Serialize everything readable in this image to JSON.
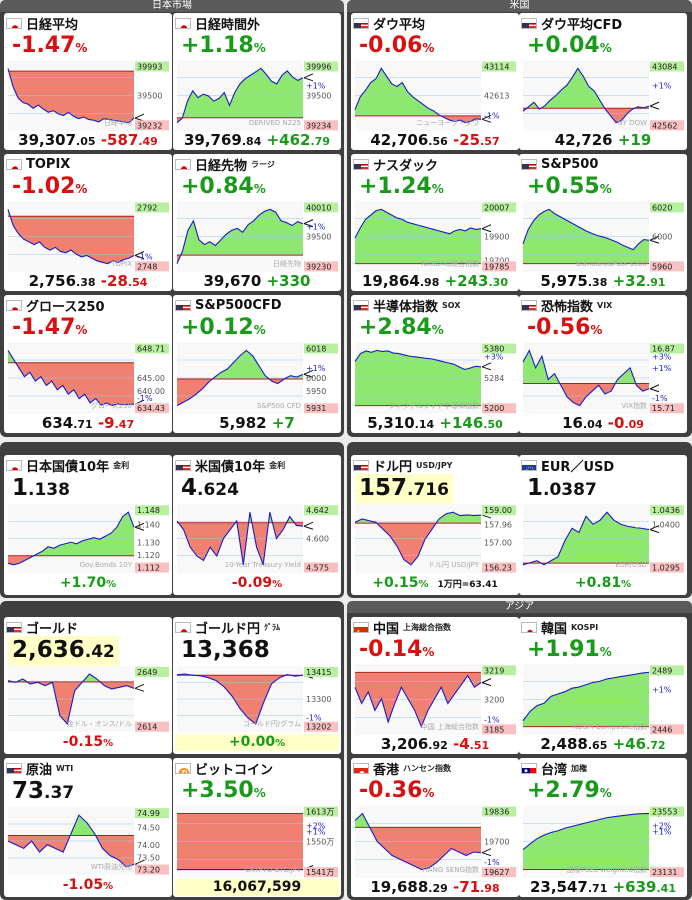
{
  "groups": {
    "japan": "日本市場",
    "us": "米国",
    "asia": "アジア"
  },
  "colors": {
    "up": "#1a9a1a",
    "down": "#d81010",
    "line": "#1a1acc",
    "green_fill": "#8ee870",
    "red_fill": "#f08070"
  },
  "cards": {
    "nikkei": {
      "name": "日経平均",
      "flag": "jp",
      "change_pct": "-1.47",
      "pct_unit": "%",
      "price_int": "39,307",
      "price_dec": ".05",
      "change_int": "-587",
      "change_dec": ".49",
      "tick_top": "39993",
      "tick_mid": "39500",
      "tick_low": "39232",
      "watermark": "日経平均",
      "prev": 39894.54,
      "series": [
        39930,
        39700,
        39560,
        39500,
        39480,
        39430,
        39470,
        39420,
        39380,
        39400,
        39360,
        39340,
        39380,
        39330,
        39300,
        39320,
        39290,
        39280,
        39260,
        39300,
        39290,
        39280,
        39270,
        39260,
        39250,
        39307
      ]
    },
    "nikkei_night": {
      "name": "日経時間外",
      "flag": "jp",
      "change_pct": "+1.18",
      "pct_unit": "%",
      "price_int": "39,769",
      "price_dec": ".84",
      "change_int": "+462",
      "change_dec": ".79",
      "tick_top": "39996",
      "tick_pos1": "+1%",
      "tick_mid": "39500",
      "tick_low": "39234",
      "watermark": "DERIVED N225",
      "prev": 39307.05,
      "series": [
        39250,
        39300,
        39500,
        39620,
        39540,
        39580,
        39560,
        39500,
        39530,
        39600,
        39450,
        39600,
        39700,
        39760,
        39800,
        39840,
        39880,
        39810,
        39730,
        39700,
        39800,
        39850,
        39780,
        39740,
        39770
      ]
    },
    "dow": {
      "name": "ダウ平均",
      "flag": "us",
      "change_pct": "-0.06",
      "pct_unit": "%",
      "price_int": "42,706",
      "price_dec": ".56",
      "change_int": "-25",
      "change_dec": ".57",
      "tick_top": "43114",
      "tick_mid": "42613",
      "tick_neg1": "-1%",
      "watermark": "ニューヨーク・ダウ",
      "prev": 42732.13,
      "series": [
        42780,
        42880,
        42930,
        42990,
        43020,
        43100,
        43040,
        42980,
        42960,
        42990,
        42920,
        42880,
        42850,
        42820,
        42790,
        42770,
        42740,
        42720,
        42700,
        42690,
        42700,
        42680,
        42690,
        42710,
        42706
      ]
    },
    "dow_cfd": {
      "name": "ダウ平均CFD",
      "flag": "us",
      "change_pct": "+0.04",
      "pct_unit": "%",
      "price_int": "42,726",
      "price_dec": "",
      "change_int": "+19",
      "change_dec": "",
      "tick_top": "43084",
      "tick_pos1": "+1%",
      "tick_low": "42562",
      "watermark": "NY DOW",
      "prev": 42707,
      "series": [
        42680,
        42720,
        42760,
        42700,
        42730,
        42780,
        42820,
        42870,
        42910,
        42980,
        43060,
        42990,
        42900,
        42860,
        42780,
        42700,
        42640,
        42580,
        42600,
        42660,
        42700,
        42720,
        42710,
        42726
      ]
    },
    "topix": {
      "name": "TOPIX",
      "flag": "jp",
      "change_pct": "-1.02",
      "pct_unit": "%",
      "price_int": "2,756",
      "price_dec": ".38",
      "change_int": "-28",
      "change_dec": ".54",
      "tick_top": "2792",
      "tick_neg1": "-1%",
      "tick_low": "2748",
      "watermark": "TOPIX",
      "prev": 2784.92,
      "series": [
        2790,
        2778,
        2772,
        2768,
        2766,
        2764,
        2766,
        2762,
        2760,
        2762,
        2759,
        2758,
        2760,
        2757,
        2755,
        2756,
        2754,
        2752,
        2751,
        2750,
        2752,
        2751,
        2753,
        2754,
        2756
      ]
    },
    "nikkei_fut": {
      "name": "日経先物",
      "sub": "ラージ",
      "flag": "jp",
      "change_pct": "+0.84",
      "pct_unit": "%",
      "price_int": "39,670",
      "price_dec": "",
      "change_int": "+330",
      "change_dec": "",
      "tick_top": "40010",
      "tick_pos1": "+1%",
      "tick_mid": "39500",
      "tick_low": "39230",
      "watermark": "日経先物",
      "prev": 39340,
      "series": [
        39250,
        39380,
        39600,
        39700,
        39500,
        39450,
        39480,
        39440,
        39500,
        39560,
        39600,
        39620,
        39580,
        39660,
        39700,
        39760,
        39800,
        39820,
        39790,
        39700,
        39680,
        39650,
        39690,
        39670
      ]
    },
    "nasdaq": {
      "name": "ナスダック",
      "flag": "us",
      "change_pct": "+1.24",
      "pct_unit": "%",
      "price_int": "19,864",
      "price_dec": ".98",
      "change_int": "+243",
      "change_dec": ".30",
      "tick_top": "20007",
      "tick_mid": "19900",
      "tick_low": "19785",
      "tick_low2": "19700",
      "watermark": "NASDAQ総合指数",
      "prev": 19621.68,
      "series": [
        19800,
        19870,
        19930,
        19960,
        19990,
        20000,
        19980,
        19960,
        19940,
        19930,
        19910,
        19900,
        19890,
        19880,
        19870,
        19860,
        19850,
        19840,
        19830,
        19850,
        19860,
        19850,
        19870,
        19860,
        19865
      ]
    },
    "sp500": {
      "name": "S&P500",
      "flag": "us",
      "change_pct": "+0.55",
      "pct_unit": "%",
      "price_int": "5,975",
      "price_dec": ".38",
      "change_int": "+32",
      "change_dec": ".91",
      "tick_top": "6020",
      "tick_mid": "6000",
      "tick_low": "5960",
      "watermark": "Standard&Poor's500",
      "prev": 5942.47,
      "series": [
        5970,
        5990,
        6002,
        6010,
        6015,
        6018,
        6012,
        6008,
        6004,
        6000,
        5996,
        5992,
        5988,
        5985,
        5982,
        5980,
        5978,
        5975,
        5972,
        5968,
        5965,
        5962,
        5970,
        5976,
        5975
      ]
    },
    "growth250": {
      "name": "グロース250",
      "flag": "jp",
      "change_pct": "-1.47",
      "pct_unit": "%",
      "price_int": "634",
      "price_dec": ".71",
      "change_int": "-9",
      "change_dec": ".47",
      "tick_top": "648.71",
      "tick_mid": "645.00",
      "tick_mid2": "640.00",
      "tick_neg1": "-1%",
      "tick_low": "634.43",
      "watermark": "グロース250",
      "prev": 644.18,
      "series": [
        647,
        645,
        643,
        641,
        642,
        640,
        641,
        639,
        640,
        638,
        639,
        637,
        638,
        636,
        637,
        635,
        636,
        634.5,
        635,
        634.4,
        634.8,
        634.6,
        634.7,
        634.71
      ]
    },
    "sp500_cfd": {
      "name": "S&P500CFD",
      "flag": "us",
      "change_pct": "+0.12",
      "pct_unit": "%",
      "price_int": "5,982",
      "price_dec": "",
      "change_int": "+7",
      "change_dec": "",
      "tick_pos1": "+1%",
      "tick_top": "6018",
      "tick_mid": "6000",
      "tick_mid2": "5950",
      "tick_low": "5931",
      "watermark": "S&P500 CFD",
      "prev": 5975,
      "series": [
        5935,
        5940,
        5945,
        5952,
        5960,
        5970,
        5978,
        5985,
        5990,
        6000,
        6010,
        6018,
        6010,
        5995,
        5980,
        5972,
        5968,
        5975,
        5980,
        5978,
        5982
      ]
    },
    "sox": {
      "name": "半導体指数",
      "sub": "SOX",
      "flag": "us",
      "change_pct": "+2.84",
      "pct_unit": "%",
      "price_int": "5,310",
      "price_dec": ".14",
      "change_int": "+146",
      "change_dec": ".50",
      "tick_top": "5380",
      "tick_pos3": "+3%",
      "tick_mid": "5284",
      "tick_low": "5200",
      "watermark": "フィラデルフィア半導体指数",
      "prev": 5163.64,
      "series": [
        5330,
        5360,
        5370,
        5365,
        5372,
        5368,
        5370,
        5362,
        5360,
        5355,
        5350,
        5348,
        5345,
        5342,
        5340,
        5335,
        5330,
        5325,
        5320,
        5310,
        5300,
        5305,
        5312,
        5310
      ]
    },
    "vix": {
      "name": "恐怖指数",
      "sub": "VIX",
      "flag": "us",
      "change_pct": "-0.56",
      "pct_unit": "%",
      "price_int": "16",
      "price_dec": ".04",
      "change_int": "-0",
      "change_dec": ".09",
      "tick_top": "16.87",
      "tick_pos3": "+3%",
      "tick_pos1": "+1%",
      "tick_neg1": "-1%",
      "tick_low": "15.71",
      "watermark": "VIX指数",
      "prev": 16.13,
      "series": [
        16.5,
        16.7,
        16.4,
        16.6,
        16.2,
        16.3,
        16.1,
        15.9,
        15.8,
        15.75,
        15.9,
        16.0,
        16.1,
        15.95,
        16.0,
        16.2,
        16.3,
        16.4,
        16.1,
        16.0,
        16.04
      ]
    },
    "jgb10": {
      "name": "日本国債10年",
      "sub": "金利",
      "flag": "jp",
      "level_int": "1",
      "level_dec": ".138",
      "tick_top": "1.148",
      "tick_a": "1.140",
      "tick_b": "1.130",
      "tick_c": "1.120",
      "tick_low": "1.112",
      "watermark": "Gov.Bonds 10Y",
      "change_pct": "+1.70",
      "pct_unit": "%",
      "prev": 1.119,
      "series": [
        1.114,
        1.113,
        1.114,
        1.116,
        1.118,
        1.12,
        1.122,
        1.125,
        1.124,
        1.126,
        1.127,
        1.128,
        1.127,
        1.129,
        1.13,
        1.131,
        1.13,
        1.132,
        1.134,
        1.138,
        1.145,
        1.148,
        1.138
      ]
    },
    "ust10": {
      "name": "米国債10年",
      "sub": "金利",
      "flag": "us",
      "level_int": "4",
      "level_dec": ".624",
      "tick_top": "4.642",
      "tick_mid": "4.600",
      "tick_low": "4.575",
      "watermark": "10-Year Treasury Yield",
      "change_pct": "-0.09",
      "pct_unit": "%",
      "prev": 4.628,
      "series": [
        4.63,
        4.62,
        4.6,
        4.59,
        4.585,
        4.6,
        4.59,
        4.61,
        4.62,
        4.63,
        4.58,
        4.64,
        4.6,
        4.58,
        4.64,
        4.61,
        4.62,
        4.635,
        4.625,
        4.624
      ]
    },
    "usdjpy": {
      "name": "ドル円",
      "sub": "USD/JPY",
      "flag": "us",
      "level_int": "157",
      "level_dec": ".716",
      "tick_top": "159.00",
      "tick_a": "157.96",
      "tick_b": "157.00",
      "tick_low": "156.23",
      "watermark": "ドル円 USD/JPY",
      "change_pct": "+0.15",
      "pct_unit": "%",
      "extra": "1万円=63.41",
      "prev": 157.48,
      "series": [
        157.5,
        157.6,
        157.55,
        157.5,
        157.3,
        157.1,
        156.8,
        156.4,
        156.25,
        156.5,
        157.0,
        157.3,
        157.6,
        157.75,
        157.8,
        157.7,
        157.72,
        157.7,
        157.716
      ]
    },
    "eurusd": {
      "name": "EUR／USD",
      "flag": "eu",
      "level_int": "1",
      "level_dec": ".0387",
      "tick_top": "1.0436",
      "tick_a": "1.0400",
      "tick_low": "1.0295",
      "watermark": "EUR/USD",
      "change_pct": "+0.81",
      "pct_unit": "%",
      "prev": 1.0304,
      "series": [
        1.03,
        1.0305,
        1.031,
        1.03,
        1.031,
        1.032,
        1.036,
        1.039,
        1.038,
        1.042,
        1.04,
        1.041,
        1.043,
        1.041,
        1.04,
        1.0395,
        1.0392,
        1.039,
        1.0387
      ]
    },
    "gold": {
      "name": "ゴールド",
      "flag": "us",
      "level_int": "2,636",
      "level_dec": ".42",
      "tick_top": "2649",
      "tick_low": "2614",
      "watermark": "金ドル・オンス/ドル",
      "change_pct": "-0.15",
      "pct_unit": "%",
      "prev": 2640.3,
      "series": [
        2641,
        2640,
        2642,
        2639,
        2640,
        2638,
        2640,
        2620,
        2615,
        2635,
        2640,
        2645,
        2642,
        2638,
        2636,
        2637,
        2638,
        2636.42
      ]
    },
    "gold_jpy": {
      "name": "ゴールド円",
      "sub": "ｸﾞﾗﾑ",
      "flag": "jp",
      "level_int": "13,368",
      "level_dec": "",
      "tick_top": "13415",
      "tick_mid": "13300",
      "tick_neg1": "-1%",
      "tick_low": "13202",
      "watermark": "ゴールド円/グラム",
      "change_pct": "+0.00",
      "pct_unit": "%",
      "prev": 13368,
      "series": [
        13370,
        13372,
        13368,
        13366,
        13360,
        13350,
        13330,
        13300,
        13260,
        13230,
        13210,
        13280,
        13340,
        13360,
        13370,
        13365,
        13368
      ]
    },
    "shanghai": {
      "name": "中国",
      "sub": "上海総合指数",
      "flag": "cn",
      "change_pct": "-0.14",
      "pct_unit": "%",
      "price_int": "3,206",
      "price_dec": ".92",
      "change_int": "-4",
      "change_dec": ".51",
      "tick_top": "3219",
      "tick_mid": "3200",
      "tick_low": "3185",
      "tick_neg1": "-1%",
      "watermark": "中国 上海総合指数",
      "prev": 3211.43,
      "series": [
        3205,
        3198,
        3203,
        3195,
        3200,
        3190,
        3198,
        3205,
        3200,
        3195,
        3188,
        3195,
        3200,
        3205,
        3198,
        3202,
        3206,
        3210,
        3205,
        3207
      ]
    },
    "kospi": {
      "name": "韓国",
      "sub": "KOSPI",
      "flag": "kr",
      "change_pct": "+1.91",
      "pct_unit": "%",
      "price_int": "2,488",
      "price_dec": ".65",
      "change_int": "+46",
      "change_dec": ".72",
      "tick_top": "2489",
      "tick_pos1": "+1%",
      "tick_low": "2446",
      "watermark": "KOSPI Composite指数",
      "prev": 2441.93,
      "series": [
        2447,
        2455,
        2460,
        2462,
        2468,
        2470,
        2472,
        2475,
        2476,
        2478,
        2480,
        2481,
        2483,
        2484,
        2485,
        2486,
        2487,
        2488,
        2488.65
      ]
    },
    "hangseng": {
      "name": "香港",
      "sub": "ハンセン指数",
      "flag": "hk",
      "change_pct": "-0.36",
      "pct_unit": "%",
      "price_int": "19,688",
      "price_dec": ".29",
      "change_int": "-71",
      "change_dec": ".98",
      "tick_top": "19836",
      "tick_mid": "19700",
      "tick_low": "19627",
      "tick_neg1": "-1%",
      "watermark": "HANG SENG指数",
      "prev": 19760.27,
      "series": [
        19780,
        19800,
        19760,
        19720,
        19700,
        19680,
        19670,
        19660,
        19650,
        19640,
        19645,
        19660,
        19680,
        19700,
        19690,
        19680,
        19690,
        19688
      ]
    },
    "taiwan": {
      "name": "台湾",
      "sub": "加権",
      "flag": "tw",
      "change_pct": "+2.79",
      "pct_unit": "%",
      "price_int": "23,547",
      "price_dec": ".71",
      "change_int": "+639",
      "change_dec": ".41",
      "tick_top": "23553",
      "tick_pos2": "+2%",
      "tick_pos1": "+1%",
      "tick_low": "23131",
      "watermark": "加権TSEC weighted指数",
      "prev": 22908.3,
      "series": [
        23135,
        23200,
        23260,
        23300,
        23330,
        23350,
        23380,
        23400,
        23420,
        23440,
        23460,
        23480,
        23500,
        23510,
        23520,
        23530,
        23540,
        23545,
        23547
      ]
    },
    "wti": {
      "name": "原油",
      "sub": "WTI",
      "flag": "us",
      "level_int": "73",
      "level_dec": ".37",
      "tick_top": "74.99",
      "tick_a": "74.50",
      "tick_b": "74.00",
      "tick_c": "73.50",
      "tick_low": "73.20",
      "watermark": "WTI原油先物",
      "change_pct": "-1.05",
      "pct_unit": "%",
      "prev": 74.15,
      "series": [
        74.0,
        73.9,
        73.8,
        74.0,
        73.7,
        73.9,
        73.8,
        73.7,
        74.2,
        74.7,
        74.5,
        74.2,
        73.8,
        73.6,
        73.5,
        73.3,
        73.37
      ]
    },
    "bitcoin": {
      "name": "ビットコイン",
      "flag": "btc",
      "change_pct": "+3.50",
      "pct_unit": "%",
      "level_int": "16,067,599",
      "level_dec": "",
      "tick_top": "1613万",
      "tick_pos2": "+2%",
      "tick_pos1": "+1%",
      "tick_mid": "1550万",
      "tick_low": "1541万",
      "watermark": "CRYPTO BTC/JPY",
      "prev": 15524000,
      "series": [
        15420,
        15430,
        15425,
        15435,
        15440,
        15450,
        15445,
        15460,
        15700,
        16050,
        16080,
        16100,
        16090,
        16110,
        16120,
        16080,
        16090,
        16070,
        16068
      ]
    }
  }
}
